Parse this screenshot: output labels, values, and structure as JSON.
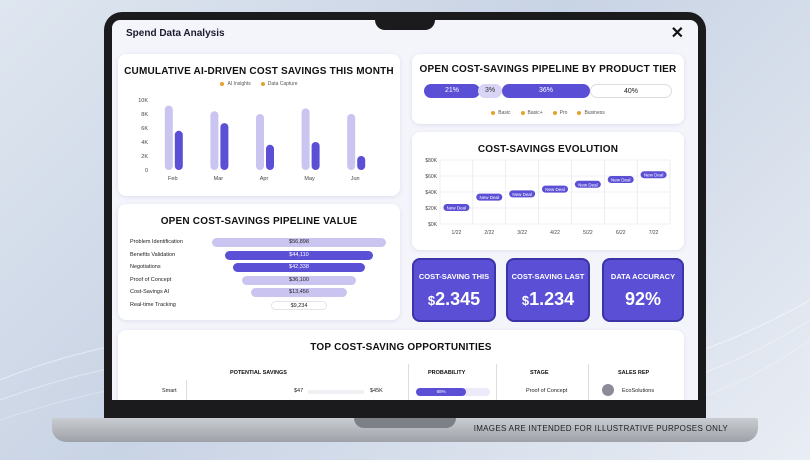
{
  "app": {
    "title": "Spend Data Analysis",
    "close_icon": "close-icon"
  },
  "watermark": "IMAGES ARE INTENDED FOR ILLUSTRATIVE PURPOSES ONLY",
  "cumulative": {
    "title": "CUMULATIVE AI-DRIVEN COST SAVINGS THIS MONTH",
    "legend": [
      "AI Insights",
      "Data Capture"
    ],
    "colors": {
      "ai_insights": "#c9c5f0",
      "data_capture": "#5b4fd6"
    }
  },
  "pipeline_tier": {
    "title": "OPEN COST-SAVINGS PIPELINE BY PRODUCT TIER",
    "segments": [
      {
        "label": "21%",
        "value": 21
      },
      {
        "label": "3%",
        "value": 3
      },
      {
        "label": "36%",
        "value": 36
      },
      {
        "label": "40%",
        "value": 40
      }
    ],
    "legend": [
      "Basic",
      "Basic+",
      "Pro",
      "Business"
    ]
  },
  "funnel": {
    "title": "OPEN COST-SAVINGS PIPELINE VALUE",
    "stages": [
      {
        "name": "Problem Identification",
        "value": "$56,898"
      },
      {
        "name": "Benefits Validation",
        "value": "$44,110"
      },
      {
        "name": "Negotiations",
        "value": "$42,338"
      },
      {
        "name": "Proof of Concept",
        "value": "$36,100"
      },
      {
        "name": "Cost-Savings AI",
        "value": "$13,456"
      },
      {
        "name": "Real-time Tracking",
        "value": "$9,234"
      }
    ]
  },
  "evolution": {
    "title": "COST-SAVINGS EVOLUTION",
    "point_label": "New Deal"
  },
  "kpis": [
    {
      "label": "COST-SAVING THIS",
      "currency": "$",
      "value": "2.345"
    },
    {
      "label": "COST-SAVING LAST",
      "currency": "$",
      "value": "1.234"
    },
    {
      "label": "DATA ACCURACY",
      "currency": "",
      "value": "92%"
    }
  ],
  "opportunities": {
    "title": "TOP COST-SAVING OPPORTUNITIES",
    "headers": {
      "potential": "POTENTIAL SAVINGS",
      "probability": "PROBABILITY",
      "stage": "STAGE",
      "rep": "SALES REP"
    },
    "rows": [
      {
        "name": "Smart",
        "low": "$47",
        "high": "$45K",
        "probability": "68%",
        "probability_value": 68,
        "stage": "Proof of Concept",
        "rep": "EcoSolutions"
      }
    ]
  },
  "chart_data": [
    {
      "type": "bar",
      "title": "CUMULATIVE AI-DRIVEN COST SAVINGS THIS MONTH",
      "categories": [
        "Feb",
        "Mar",
        "Apr",
        "May",
        "Jun"
      ],
      "series": [
        {
          "name": "AI Insights",
          "values": [
            9200,
            8400,
            8000,
            8800,
            8000
          ]
        },
        {
          "name": "Data Capture",
          "values": [
            5600,
            6700,
            3600,
            4000,
            2000
          ]
        }
      ],
      "yticks": [
        "0",
        "2K",
        "4K",
        "6K",
        "8K",
        "10K"
      ],
      "ylim": [
        0,
        10000
      ]
    },
    {
      "type": "line",
      "title": "COST-SAVINGS EVOLUTION",
      "x": [
        "1/22",
        "2/22",
        "3/22",
        "4/22",
        "5/22",
        "6/22",
        "7/22"
      ],
      "values": [
        20000,
        33000,
        37000,
        43000,
        49000,
        55000,
        61000
      ],
      "yticks": [
        "$0K",
        "$20K",
        "$40K",
        "$60K",
        "$80K"
      ],
      "ylim": [
        0,
        80000
      ]
    }
  ]
}
